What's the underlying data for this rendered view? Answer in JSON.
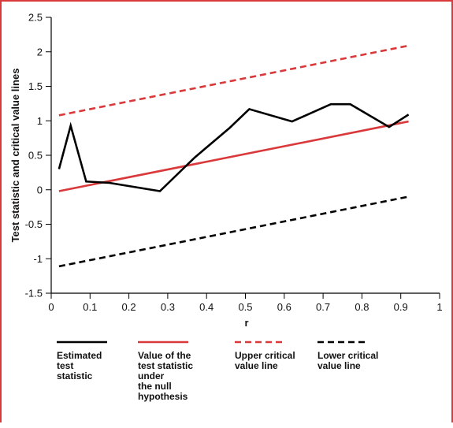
{
  "chart_data": {
    "type": "line",
    "title": "",
    "xlabel": "r",
    "ylabel": "Test statistic and critical value lines",
    "xlim": [
      0,
      1
    ],
    "ylim": [
      -1.5,
      2.5
    ],
    "xticks": [
      "0",
      "0.1",
      "0.2",
      "0.3",
      "0.4",
      "0.5",
      "0.6",
      "0.7",
      "0.8",
      "0.9",
      "1"
    ],
    "yticks": [
      "-1.5",
      "-1",
      "-0.5",
      "0",
      "0.5",
      "1",
      "1.5",
      "2",
      "2.5"
    ],
    "grid": false,
    "legend_position": "bottom",
    "series": [
      {
        "name": "Estimated test statistic",
        "color": "#000000",
        "dash": "solid",
        "x": [
          0.02,
          0.05,
          0.09,
          0.15,
          0.28,
          0.37,
          0.46,
          0.51,
          0.62,
          0.72,
          0.77,
          0.87,
          0.92
        ],
        "y": [
          0.3,
          0.93,
          0.12,
          0.1,
          -0.02,
          0.47,
          0.9,
          1.17,
          0.99,
          1.24,
          1.24,
          0.91,
          1.09
        ]
      },
      {
        "name": "Value of the test statistic under the null hypothesis",
        "color": "#d9393b",
        "dash": "solid",
        "x": [
          0.02,
          0.92
        ],
        "y": [
          -0.02,
          0.99
        ]
      },
      {
        "name": "Upper critical value line",
        "color": "#d9393b",
        "dash": "dashed",
        "x": [
          0.02,
          0.92
        ],
        "y": [
          1.08,
          2.09
        ]
      },
      {
        "name": "Lower critical value line",
        "color": "#000000",
        "dash": "dashed",
        "x": [
          0.02,
          0.92
        ],
        "y": [
          -1.11,
          -0.1
        ]
      }
    ],
    "legend": [
      {
        "lines": [
          "Estimated",
          "test",
          "statistic"
        ]
      },
      {
        "lines": [
          "Value of the",
          "test statistic",
          "under",
          "the null",
          "hypothesis"
        ]
      },
      {
        "lines": [
          "Upper critical",
          "value line"
        ]
      },
      {
        "lines": [
          "Lower critical",
          "value line"
        ]
      }
    ]
  }
}
